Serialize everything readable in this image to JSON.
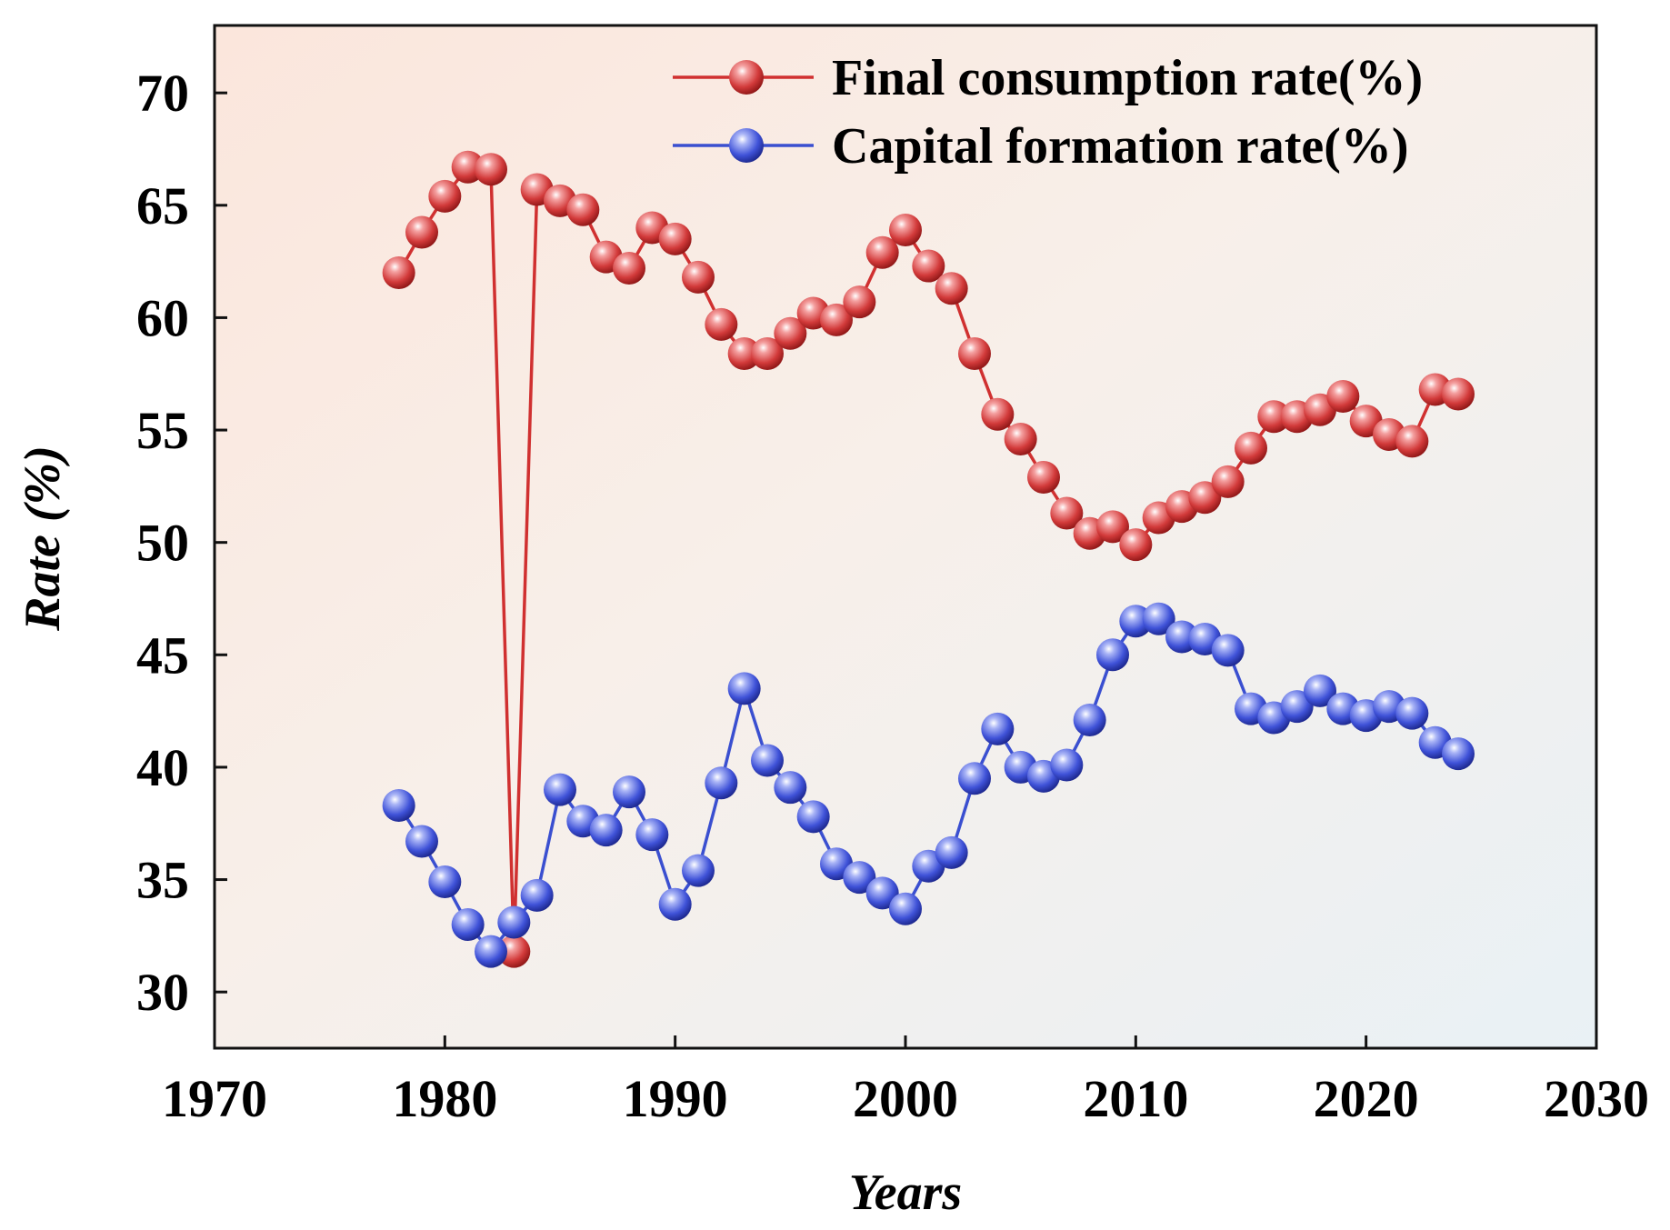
{
  "chart_data": {
    "type": "line",
    "title": "",
    "xlabel": "Years",
    "ylabel": "Rate (%)",
    "xlim": [
      1970,
      2030
    ],
    "ylim": [
      27.5,
      73
    ],
    "xticks": [
      1970,
      1980,
      1990,
      2000,
      2010,
      2020,
      2030
    ],
    "yticks": [
      30,
      35,
      40,
      45,
      50,
      55,
      60,
      65,
      70
    ],
    "grid": false,
    "legend_position": "top-right",
    "x": [
      1978,
      1979,
      1980,
      1981,
      1982,
      1983,
      1984,
      1985,
      1986,
      1987,
      1988,
      1989,
      1990,
      1991,
      1992,
      1993,
      1994,
      1995,
      1996,
      1997,
      1998,
      1999,
      2000,
      2001,
      2002,
      2003,
      2004,
      2005,
      2006,
      2007,
      2008,
      2009,
      2010,
      2011,
      2012,
      2013,
      2014,
      2015,
      2016,
      2017,
      2018,
      2019,
      2020,
      2021,
      2022,
      2023,
      2024
    ],
    "series": [
      {
        "name": "Final consumption rate(%)",
        "color": "#d03030",
        "values": [
          62.0,
          63.8,
          65.4,
          66.7,
          66.6,
          31.8,
          65.7,
          65.2,
          64.8,
          62.7,
          62.2,
          64.0,
          63.5,
          61.8,
          59.7,
          58.4,
          58.4,
          59.3,
          60.2,
          59.9,
          60.7,
          62.9,
          63.9,
          62.3,
          61.3,
          58.4,
          55.7,
          54.6,
          52.9,
          51.3,
          50.4,
          50.7,
          49.9,
          51.1,
          51.6,
          52.0,
          52.7,
          54.2,
          55.6,
          55.6,
          55.9,
          56.5,
          55.4,
          54.8,
          54.5,
          56.8,
          56.6
        ]
      },
      {
        "name": "Capital formation rate(%)",
        "color": "#3a4fd0",
        "values": [
          38.3,
          36.7,
          34.9,
          33.0,
          31.8,
          33.1,
          34.3,
          39.0,
          37.6,
          37.2,
          38.9,
          37.0,
          33.9,
          35.4,
          39.3,
          43.5,
          40.3,
          39.1,
          37.8,
          35.7,
          35.1,
          34.4,
          33.7,
          35.6,
          36.2,
          39.5,
          41.7,
          40.0,
          39.6,
          40.1,
          42.1,
          45.0,
          46.5,
          46.6,
          45.8,
          45.7,
          45.2,
          42.6,
          42.2,
          42.7,
          43.4,
          42.6,
          42.3,
          42.7,
          42.4,
          41.1,
          40.6
        ]
      }
    ]
  }
}
